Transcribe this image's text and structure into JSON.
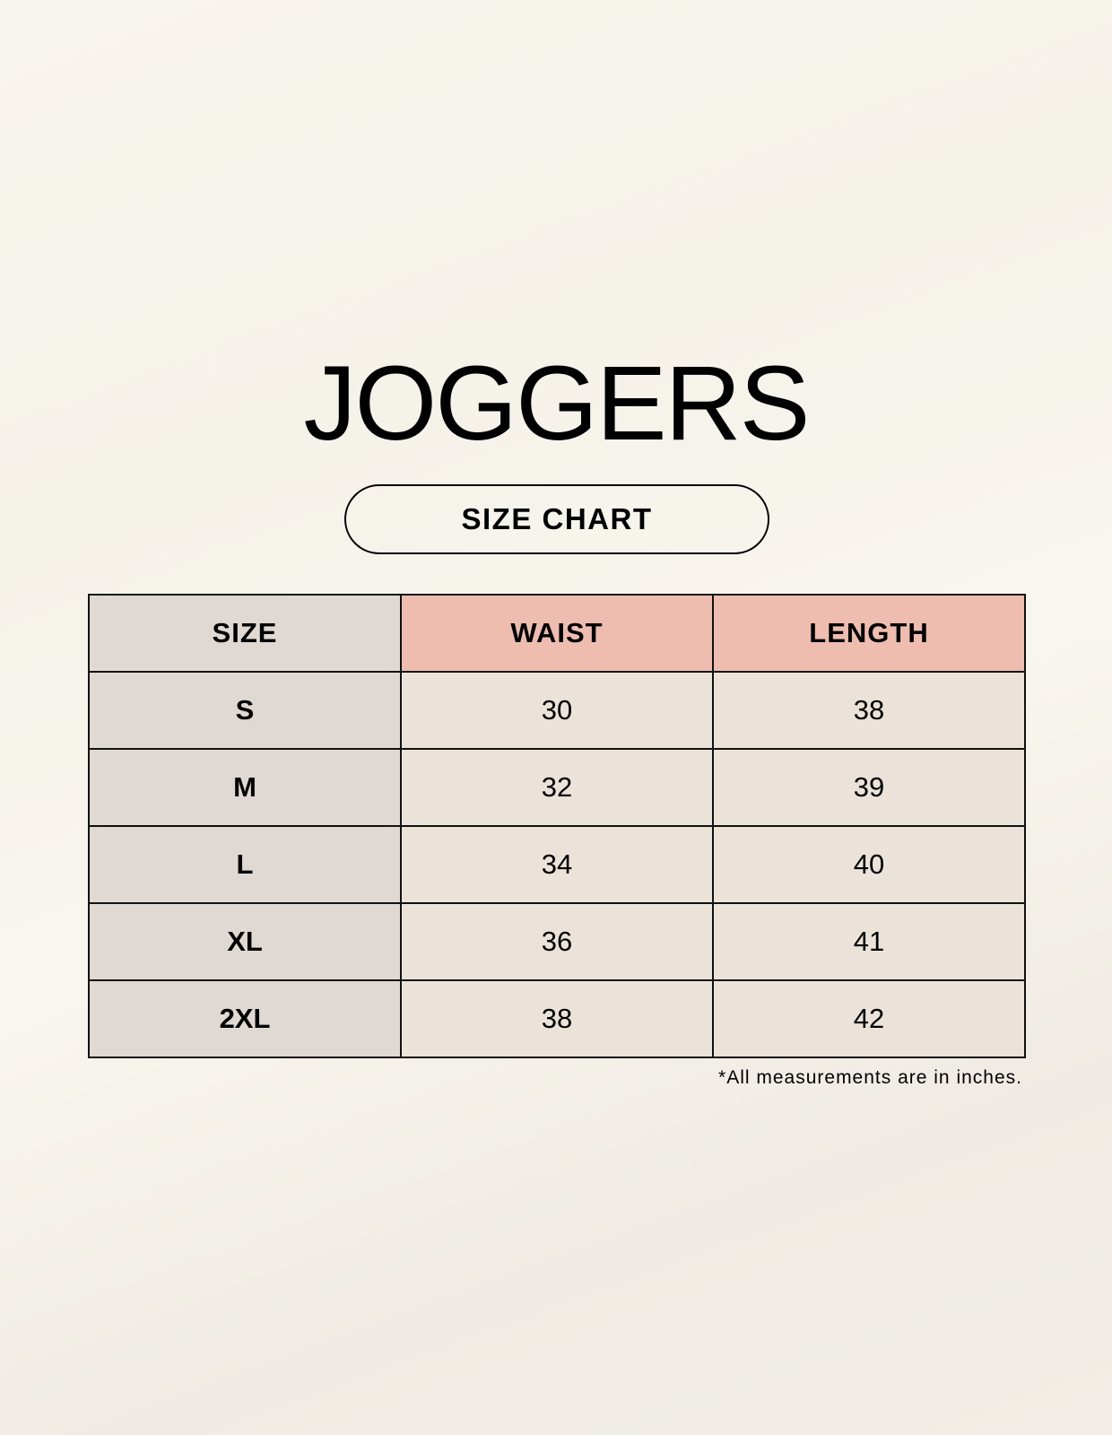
{
  "title": "JOGGERS",
  "subtitle": "SIZE CHART",
  "table": {
    "headers": [
      "SIZE",
      "WAIST",
      "LENGTH"
    ],
    "rows": [
      [
        "S",
        "30",
        "38"
      ],
      [
        "M",
        "32",
        "39"
      ],
      [
        "L",
        "34",
        "40"
      ],
      [
        "XL",
        "36",
        "41"
      ],
      [
        "2XL",
        "38",
        "42"
      ]
    ]
  },
  "note": "*All measurements are in inches.",
  "colors": {
    "size_column": "#e0d9d3",
    "header_accent": "#efbdb0",
    "cell": "#ebe3d9"
  }
}
